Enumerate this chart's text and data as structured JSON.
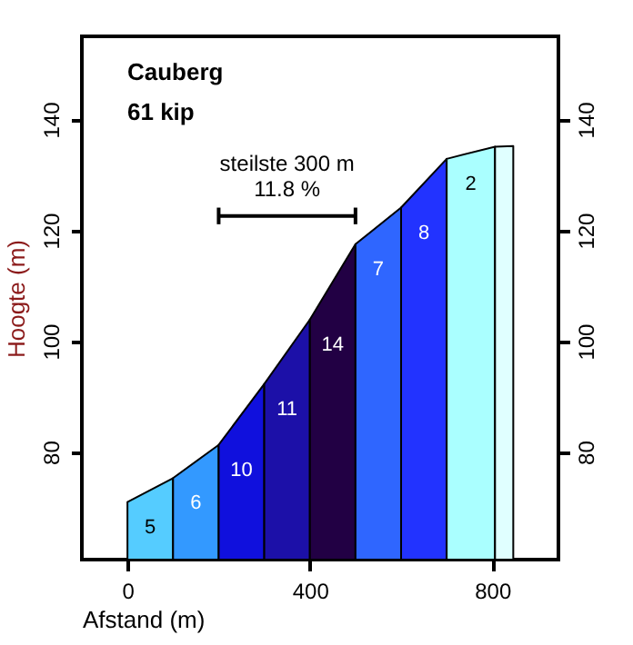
{
  "chart_data": {
    "type": "area",
    "title": "Cauberg",
    "subtitle": "61 kip",
    "xlabel": "Afstand (m)",
    "ylabel": "Hoogte (m)",
    "xlim": [
      -100,
      945
    ],
    "ylim": [
      60.6,
      155
    ],
    "xticks": [
      0,
      400,
      800
    ],
    "yticks": [
      80,
      100,
      120,
      140
    ],
    "y2lim": [
      60.6,
      155
    ],
    "y2ticks": [
      80,
      100,
      120,
      140
    ],
    "grid": false,
    "annotations": [
      {
        "text": "steilste 300 m\n11.8 %",
        "x": 350,
        "y": 122.6
      }
    ],
    "series": [
      {
        "name": "5",
        "color": "#55ccff",
        "x": [
          0,
          100
        ],
        "values": [
          71,
          75.3
        ]
      },
      {
        "name": "6",
        "color": "#3399ff",
        "x": [
          100,
          200
        ],
        "values": [
          75.3,
          81.3
        ]
      },
      {
        "name": "10",
        "color": "#1010dd",
        "x": [
          200,
          300
        ],
        "values": [
          81.3,
          92.3
        ]
      },
      {
        "name": "11",
        "color": "#1c10a8",
        "x": [
          300,
          400
        ],
        "values": [
          92.3,
          103.9
        ]
      },
      {
        "name": "14",
        "color": "#220044",
        "x": [
          400,
          500
        ],
        "values": [
          103.9,
          117.5
        ]
      },
      {
        "name": "7",
        "color": "#2f66ff",
        "x": [
          500,
          600
        ],
        "values": [
          117.5,
          124.1
        ]
      },
      {
        "name": "8",
        "color": "#2233ff",
        "x": [
          600,
          700
        ],
        "values": [
          124.1,
          132.9
        ]
      },
      {
        "name": "2",
        "color": "#aaffff",
        "x": [
          700,
          806
        ],
        "values": [
          132.9,
          135.1
        ]
      },
      {
        "color": "#e0ffff",
        "x": [
          806,
          846
        ],
        "values": [
          135.1,
          135.2
        ]
      },
      {
        "type": "line",
        "color": "#000000",
        "x": [
          200,
          500
        ],
        "values": [
          122.6,
          122.6
        ],
        "errors": [
          1.5,
          1.5
        ]
      }
    ]
  }
}
